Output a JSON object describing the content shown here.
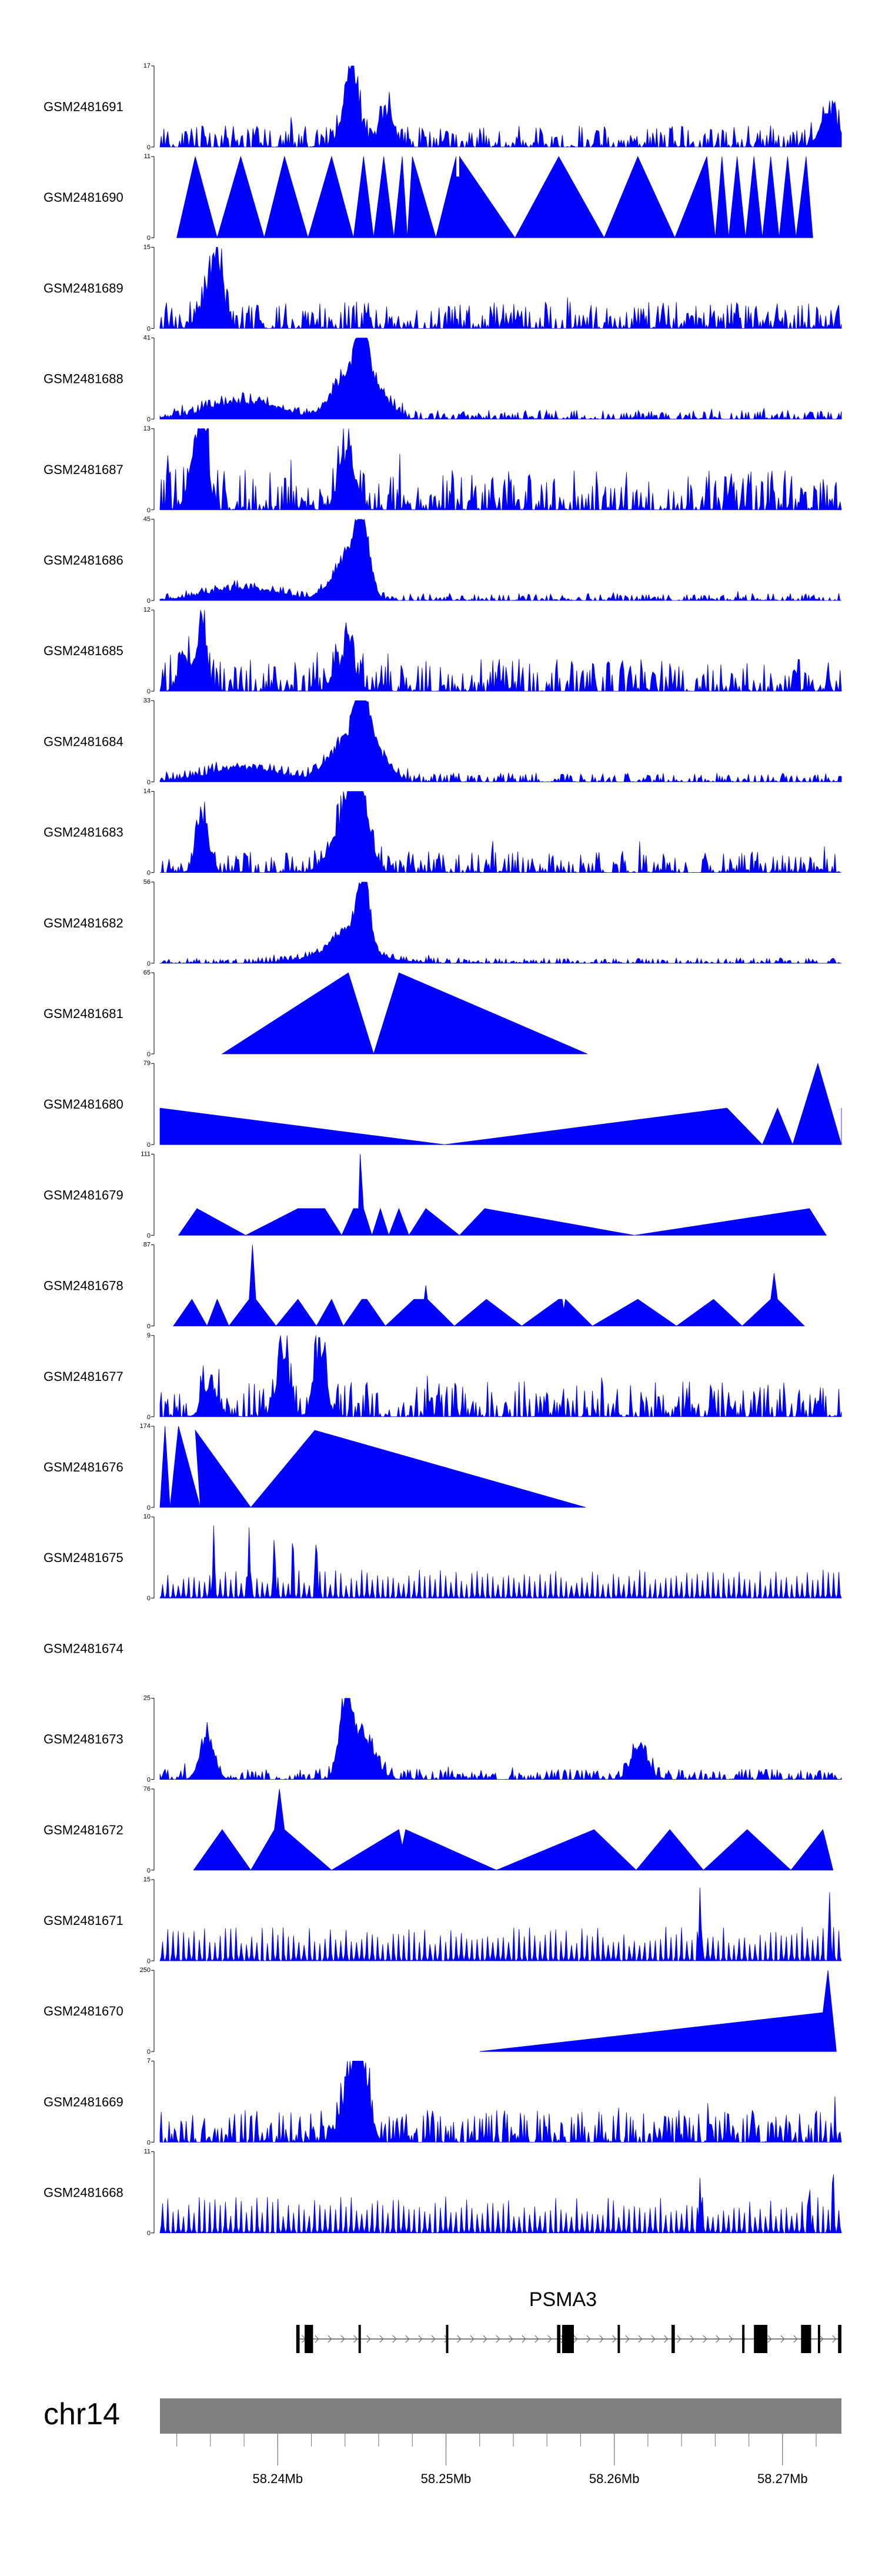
{
  "chart_data": {
    "type": "area",
    "description_free": true,
    "genome": "chr14",
    "region": {
      "start_mb": 58.233,
      "end_mb": 58.2735
    },
    "tracks": [
      {
        "name": "GSM2481691",
        "ymax": 17,
        "ymin": 0,
        "style": "noise",
        "baseline": 0.12,
        "peaks": [
          [
            58.2445,
            1.0,
            0.0005
          ],
          [
            58.2465,
            0.45,
            0.0006
          ],
          [
            58.244,
            0.35,
            0.0006
          ],
          [
            58.2728,
            0.45,
            0.0008
          ]
        ]
      },
      {
        "name": "GSM2481690",
        "ymax": 11,
        "ymin": 0,
        "style": "triangles",
        "points": [
          [
            58.234,
            0
          ],
          [
            58.2351,
            1.0
          ],
          [
            58.2364,
            0
          ],
          [
            58.2378,
            1.0
          ],
          [
            58.2392,
            0
          ],
          [
            58.2404,
            1.0
          ],
          [
            58.2418,
            0
          ],
          [
            58.2432,
            1.0
          ],
          [
            58.2445,
            0
          ],
          [
            58.2451,
            1.0
          ],
          [
            58.2457,
            0
          ],
          [
            58.2463,
            1.0
          ],
          [
            58.2469,
            0
          ],
          [
            58.2474,
            1.0
          ],
          [
            58.2477,
            0
          ],
          [
            58.248,
            1.0
          ],
          [
            58.2494,
            0
          ],
          [
            58.2506,
            1.0
          ],
          [
            58.2506,
            0.75
          ],
          [
            58.2508,
            0.75
          ],
          [
            58.2508,
            1.0
          ],
          [
            58.2541,
            0
          ],
          [
            58.2567,
            1.0
          ],
          [
            58.2594,
            0
          ],
          [
            58.2614,
            1.0
          ],
          [
            58.2636,
            0
          ],
          [
            58.2655,
            1.0
          ],
          [
            58.266,
            0
          ],
          [
            58.2664,
            1.0
          ],
          [
            58.2668,
            0
          ],
          [
            58.2673,
            1.0
          ],
          [
            58.2678,
            0
          ],
          [
            58.2683,
            1.0
          ],
          [
            58.2688,
            0
          ],
          [
            58.2693,
            1.0
          ],
          [
            58.2698,
            0
          ],
          [
            58.2703,
            1.0
          ],
          [
            58.2708,
            0
          ],
          [
            58.2714,
            1.0
          ],
          [
            58.2718,
            0
          ]
        ]
      },
      {
        "name": "GSM2481689",
        "ymax": 15,
        "ymin": 0,
        "style": "noise",
        "baseline": 0.15,
        "peaks": [
          [
            58.2364,
            1.0,
            0.0005
          ],
          [
            58.2356,
            0.35,
            0.0006
          ]
        ]
      },
      {
        "name": "GSM2481688",
        "ymax": 41,
        "ymin": 0,
        "style": "noise",
        "baseline": 0.05,
        "peaks": [
          [
            58.245,
            1.0,
            0.0006
          ],
          [
            58.244,
            0.55,
            0.0012
          ],
          [
            58.246,
            0.35,
            0.001
          ],
          [
            58.238,
            0.25,
            0.003
          ]
        ]
      },
      {
        "name": "GSM2481687",
        "ymax": 13,
        "ymin": 0,
        "style": "noise",
        "baseline": 0.22,
        "peaks": [
          [
            58.2355,
            1.0,
            0.0005
          ],
          [
            58.2441,
            0.75,
            0.0007
          ],
          [
            58.235,
            0.45,
            0.0006
          ]
        ]
      },
      {
        "name": "GSM2481686",
        "ymax": 45,
        "ymin": 0,
        "style": "noise",
        "baseline": 0.04,
        "peaks": [
          [
            58.245,
            1.0,
            0.0006
          ],
          [
            58.244,
            0.55,
            0.0012
          ],
          [
            58.238,
            0.18,
            0.003
          ]
        ]
      },
      {
        "name": "GSM2481685",
        "ymax": 12,
        "ymin": 0,
        "style": "noise",
        "baseline": 0.18,
        "peaks": [
          [
            58.2355,
            1.0,
            0.0004
          ],
          [
            58.2345,
            0.5,
            0.0005
          ],
          [
            58.244,
            0.5,
            0.0008
          ]
        ]
      },
      {
        "name": "GSM2481684",
        "ymax": 33,
        "ymin": 0,
        "style": "noise",
        "baseline": 0.05,
        "peaks": [
          [
            58.245,
            1.0,
            0.0006
          ],
          [
            58.244,
            0.55,
            0.0014
          ],
          [
            58.246,
            0.35,
            0.001
          ],
          [
            58.238,
            0.2,
            0.003
          ]
        ]
      },
      {
        "name": "GSM2481683",
        "ymax": 14,
        "ymin": 0,
        "style": "noise",
        "baseline": 0.12,
        "peaks": [
          [
            58.2448,
            1.0,
            0.0008
          ],
          [
            58.2355,
            0.8,
            0.0005
          ],
          [
            58.244,
            0.6,
            0.0012
          ]
        ]
      },
      {
        "name": "GSM2481682",
        "ymax": 56,
        "ymin": 0,
        "style": "noise",
        "baseline": 0.03,
        "peaks": [
          [
            58.2451,
            1.0,
            0.0005
          ],
          [
            58.2442,
            0.35,
            0.0012
          ],
          [
            58.244,
            0.15,
            0.003
          ]
        ]
      },
      {
        "name": "GSM2481681",
        "ymax": 65,
        "ymin": 0,
        "style": "triangles",
        "points": [
          [
            58.2367,
            0
          ],
          [
            58.2442,
            1.0
          ],
          [
            58.2457,
            0
          ],
          [
            58.2472,
            1.0
          ],
          [
            58.2584,
            0
          ]
        ]
      },
      {
        "name": "GSM2481680",
        "ymax": 79,
        "ymin": 0,
        "style": "triangles",
        "points": [
          [
            58.233,
            0
          ],
          [
            58.233,
            0.45
          ],
          [
            58.2499,
            0
          ],
          [
            58.2667,
            0.45
          ],
          [
            58.2688,
            0
          ],
          [
            58.2697,
            0.45
          ],
          [
            58.2706,
            0
          ],
          [
            58.2721,
            1.0
          ],
          [
            58.2735,
            0
          ],
          [
            58.2735,
            0.45
          ]
        ]
      },
      {
        "name": "GSM2481679",
        "ymax": 111,
        "ymin": 0,
        "style": "triangles",
        "points": [
          [
            58.2341,
            0
          ],
          [
            58.2352,
            0.33
          ],
          [
            58.2381,
            0
          ],
          [
            58.2412,
            0.33
          ],
          [
            58.2428,
            0.33
          ],
          [
            58.2438,
            0
          ],
          [
            58.2445,
            0.33
          ],
          [
            58.2448,
            0.33
          ],
          [
            58.2449,
            1.0
          ],
          [
            58.2451,
            0.33
          ],
          [
            58.2456,
            0
          ],
          [
            58.2461,
            0.33
          ],
          [
            58.2466,
            0
          ],
          [
            58.2472,
            0.33
          ],
          [
            58.2478,
            0
          ],
          [
            58.2488,
            0.33
          ],
          [
            58.2508,
            0
          ],
          [
            58.2523,
            0.33
          ],
          [
            58.2612,
            0
          ],
          [
            58.2716,
            0.33
          ],
          [
            58.2726,
            0
          ]
        ]
      },
      {
        "name": "GSM2481678",
        "ymax": 87,
        "ymin": 0,
        "style": "triangles",
        "points": [
          [
            58.2338,
            0
          ],
          [
            58.2349,
            0.33
          ],
          [
            58.2358,
            0
          ],
          [
            58.2364,
            0.33
          ],
          [
            58.2371,
            0
          ],
          [
            58.2383,
            0.33
          ],
          [
            58.2385,
            1.0
          ],
          [
            58.2387,
            0.33
          ],
          [
            58.2399,
            0
          ],
          [
            58.2412,
            0.33
          ],
          [
            58.2423,
            0
          ],
          [
            58.2432,
            0.33
          ],
          [
            58.2439,
            0
          ],
          [
            58.245,
            0.33
          ],
          [
            58.2453,
            0.33
          ],
          [
            58.2464,
            0
          ],
          [
            58.2481,
            0.33
          ],
          [
            58.2487,
            0.33
          ],
          [
            58.2488,
            0.5
          ],
          [
            58.2489,
            0.33
          ],
          [
            58.2505,
            0
          ],
          [
            58.2524,
            0.33
          ],
          [
            58.2545,
            0
          ],
          [
            58.2567,
            0.33
          ],
          [
            58.2569,
            0.33
          ],
          [
            58.257,
            0.2
          ],
          [
            58.2571,
            0.33
          ],
          [
            58.2587,
            0
          ],
          [
            58.2614,
            0.33
          ],
          [
            58.2637,
            0
          ],
          [
            58.2659,
            0.33
          ],
          [
            58.2676,
            0
          ],
          [
            58.2693,
            0.33
          ],
          [
            58.2695,
            0.65
          ],
          [
            58.2697,
            0.33
          ],
          [
            58.2713,
            0
          ]
        ]
      },
      {
        "name": "GSM2481677",
        "ymax": 9,
        "ymin": 0,
        "style": "noise",
        "baseline": 0.2,
        "peaks": [
          [
            58.2403,
            0.9,
            0.0005
          ],
          [
            58.2425,
            1.0,
            0.0005
          ],
          [
            58.236,
            0.45,
            0.0006
          ]
        ]
      },
      {
        "name": "GSM2481676",
        "ymax": 174,
        "ymin": 0,
        "style": "triangles",
        "points": [
          [
            58.233,
            0
          ],
          [
            58.2333,
            1.0
          ],
          [
            58.2336,
            0
          ],
          [
            58.2341,
            1.0
          ],
          [
            58.2354,
            0
          ],
          [
            58.2351,
            0.95
          ],
          [
            58.2384,
            0
          ],
          [
            58.2422,
            0.95
          ],
          [
            58.2583,
            0
          ]
        ]
      },
      {
        "name": "GSM2481675",
        "ymax": 10,
        "ymin": 0,
        "style": "spiky",
        "baseline": 0.25,
        "peaks": [
          [
            58.2362,
            0.95
          ],
          [
            58.2383,
            0.9
          ],
          [
            58.2398,
            0.9
          ],
          [
            58.2409,
            0.95
          ],
          [
            58.2423,
            0.9
          ]
        ]
      },
      {
        "name": "GSM2481674",
        "ymax": null,
        "ymin": null,
        "style": "empty"
      },
      {
        "name": "GSM2481673",
        "ymax": 25,
        "ymin": 0,
        "style": "noise",
        "baseline": 0.06,
        "peaks": [
          [
            58.244,
            1.0,
            0.0005
          ],
          [
            58.245,
            0.65,
            0.001
          ],
          [
            58.2358,
            0.6,
            0.0006
          ],
          [
            58.2615,
            0.45,
            0.0007
          ]
        ]
      },
      {
        "name": "GSM2481672",
        "ymax": 76,
        "ymin": 0,
        "style": "triangles",
        "points": [
          [
            58.235,
            0
          ],
          [
            58.2367,
            0.5
          ],
          [
            58.2384,
            0
          ],
          [
            58.2398,
            0.5
          ],
          [
            58.2401,
            1.0
          ],
          [
            58.2404,
            0.5
          ],
          [
            58.2432,
            0
          ],
          [
            58.2472,
            0.5
          ],
          [
            58.2474,
            0.3
          ],
          [
            58.2476,
            0.5
          ],
          [
            58.253,
            0
          ],
          [
            58.2588,
            0.5
          ],
          [
            58.2613,
            0
          ],
          [
            58.2633,
            0.5
          ],
          [
            58.2653,
            0
          ],
          [
            58.2679,
            0.5
          ],
          [
            58.2705,
            0
          ],
          [
            58.2724,
            0.5
          ],
          [
            58.273,
            0
          ]
        ]
      },
      {
        "name": "GSM2481671",
        "ymax": 15,
        "ymin": 0,
        "style": "spiky",
        "baseline": 0.3,
        "peaks": [
          [
            58.2651,
            1.0
          ],
          [
            58.2728,
            0.85
          ]
        ]
      },
      {
        "name": "GSM2481670",
        "ymax": 250,
        "ymin": 0,
        "style": "triangles",
        "points": [
          [
            58.252,
            0
          ],
          [
            58.2724,
            0.48
          ],
          [
            58.2727,
            1.0
          ],
          [
            58.2732,
            0
          ]
        ]
      },
      {
        "name": "GSM2481669",
        "ymax": 7,
        "ymin": 0,
        "style": "noise",
        "baseline": 0.18,
        "peaks": [
          [
            58.245,
            1.0,
            0.0006
          ],
          [
            58.2443,
            0.7,
            0.0008
          ]
        ]
      },
      {
        "name": "GSM2481668",
        "ymax": 11,
        "ymin": 0,
        "style": "spiky",
        "baseline": 0.32,
        "peaks": [
          [
            58.273,
            1.0
          ],
          [
            58.2651,
            0.75
          ],
          [
            58.2716,
            0.72
          ]
        ]
      }
    ],
    "gene_track": {
      "gene_name": "PSMA3",
      "line_start_mb": 58.2411,
      "line_end_mb": 58.2735,
      "exons": [
        {
          "start": 58.2411,
          "end": 58.2413,
          "thick": true
        },
        {
          "start": 58.2416,
          "end": 58.2421,
          "thick": true
        },
        {
          "start": 58.2448,
          "end": 58.2449,
          "thick": true
        },
        {
          "start": 58.25,
          "end": 58.2501,
          "thick": true
        },
        {
          "start": 58.2566,
          "end": 58.2568,
          "thick": true
        },
        {
          "start": 58.2569,
          "end": 58.2576,
          "thick": true
        },
        {
          "start": 58.2602,
          "end": 58.2603,
          "thick": true
        },
        {
          "start": 58.2634,
          "end": 58.2636,
          "thick": true
        },
        {
          "start": 58.2676,
          "end": 58.2677,
          "thick": true
        },
        {
          "start": 58.2683,
          "end": 58.2691,
          "thick": true
        },
        {
          "start": 58.2711,
          "end": 58.2717,
          "thick": true
        },
        {
          "start": 58.2721,
          "end": 58.2722,
          "thick": true
        },
        {
          "start": 58.2733,
          "end": 58.2735,
          "thick": true
        }
      ]
    },
    "ideogram": {
      "chrom_label": "chr14",
      "color": "#808080"
    },
    "x_axis": {
      "ticks": [
        {
          "mb": 58.24,
          "label": "58.24Mb"
        },
        {
          "mb": 58.25,
          "label": "58.25Mb"
        },
        {
          "mb": 58.26,
          "label": "58.26Mb"
        },
        {
          "mb": 58.27,
          "label": "58.27Mb"
        }
      ],
      "minor_step_mb": 0.002
    },
    "colors": {
      "signal": "#0000ff",
      "axis": "#000000",
      "gene": "#000000",
      "ideogram": "#808080"
    }
  }
}
